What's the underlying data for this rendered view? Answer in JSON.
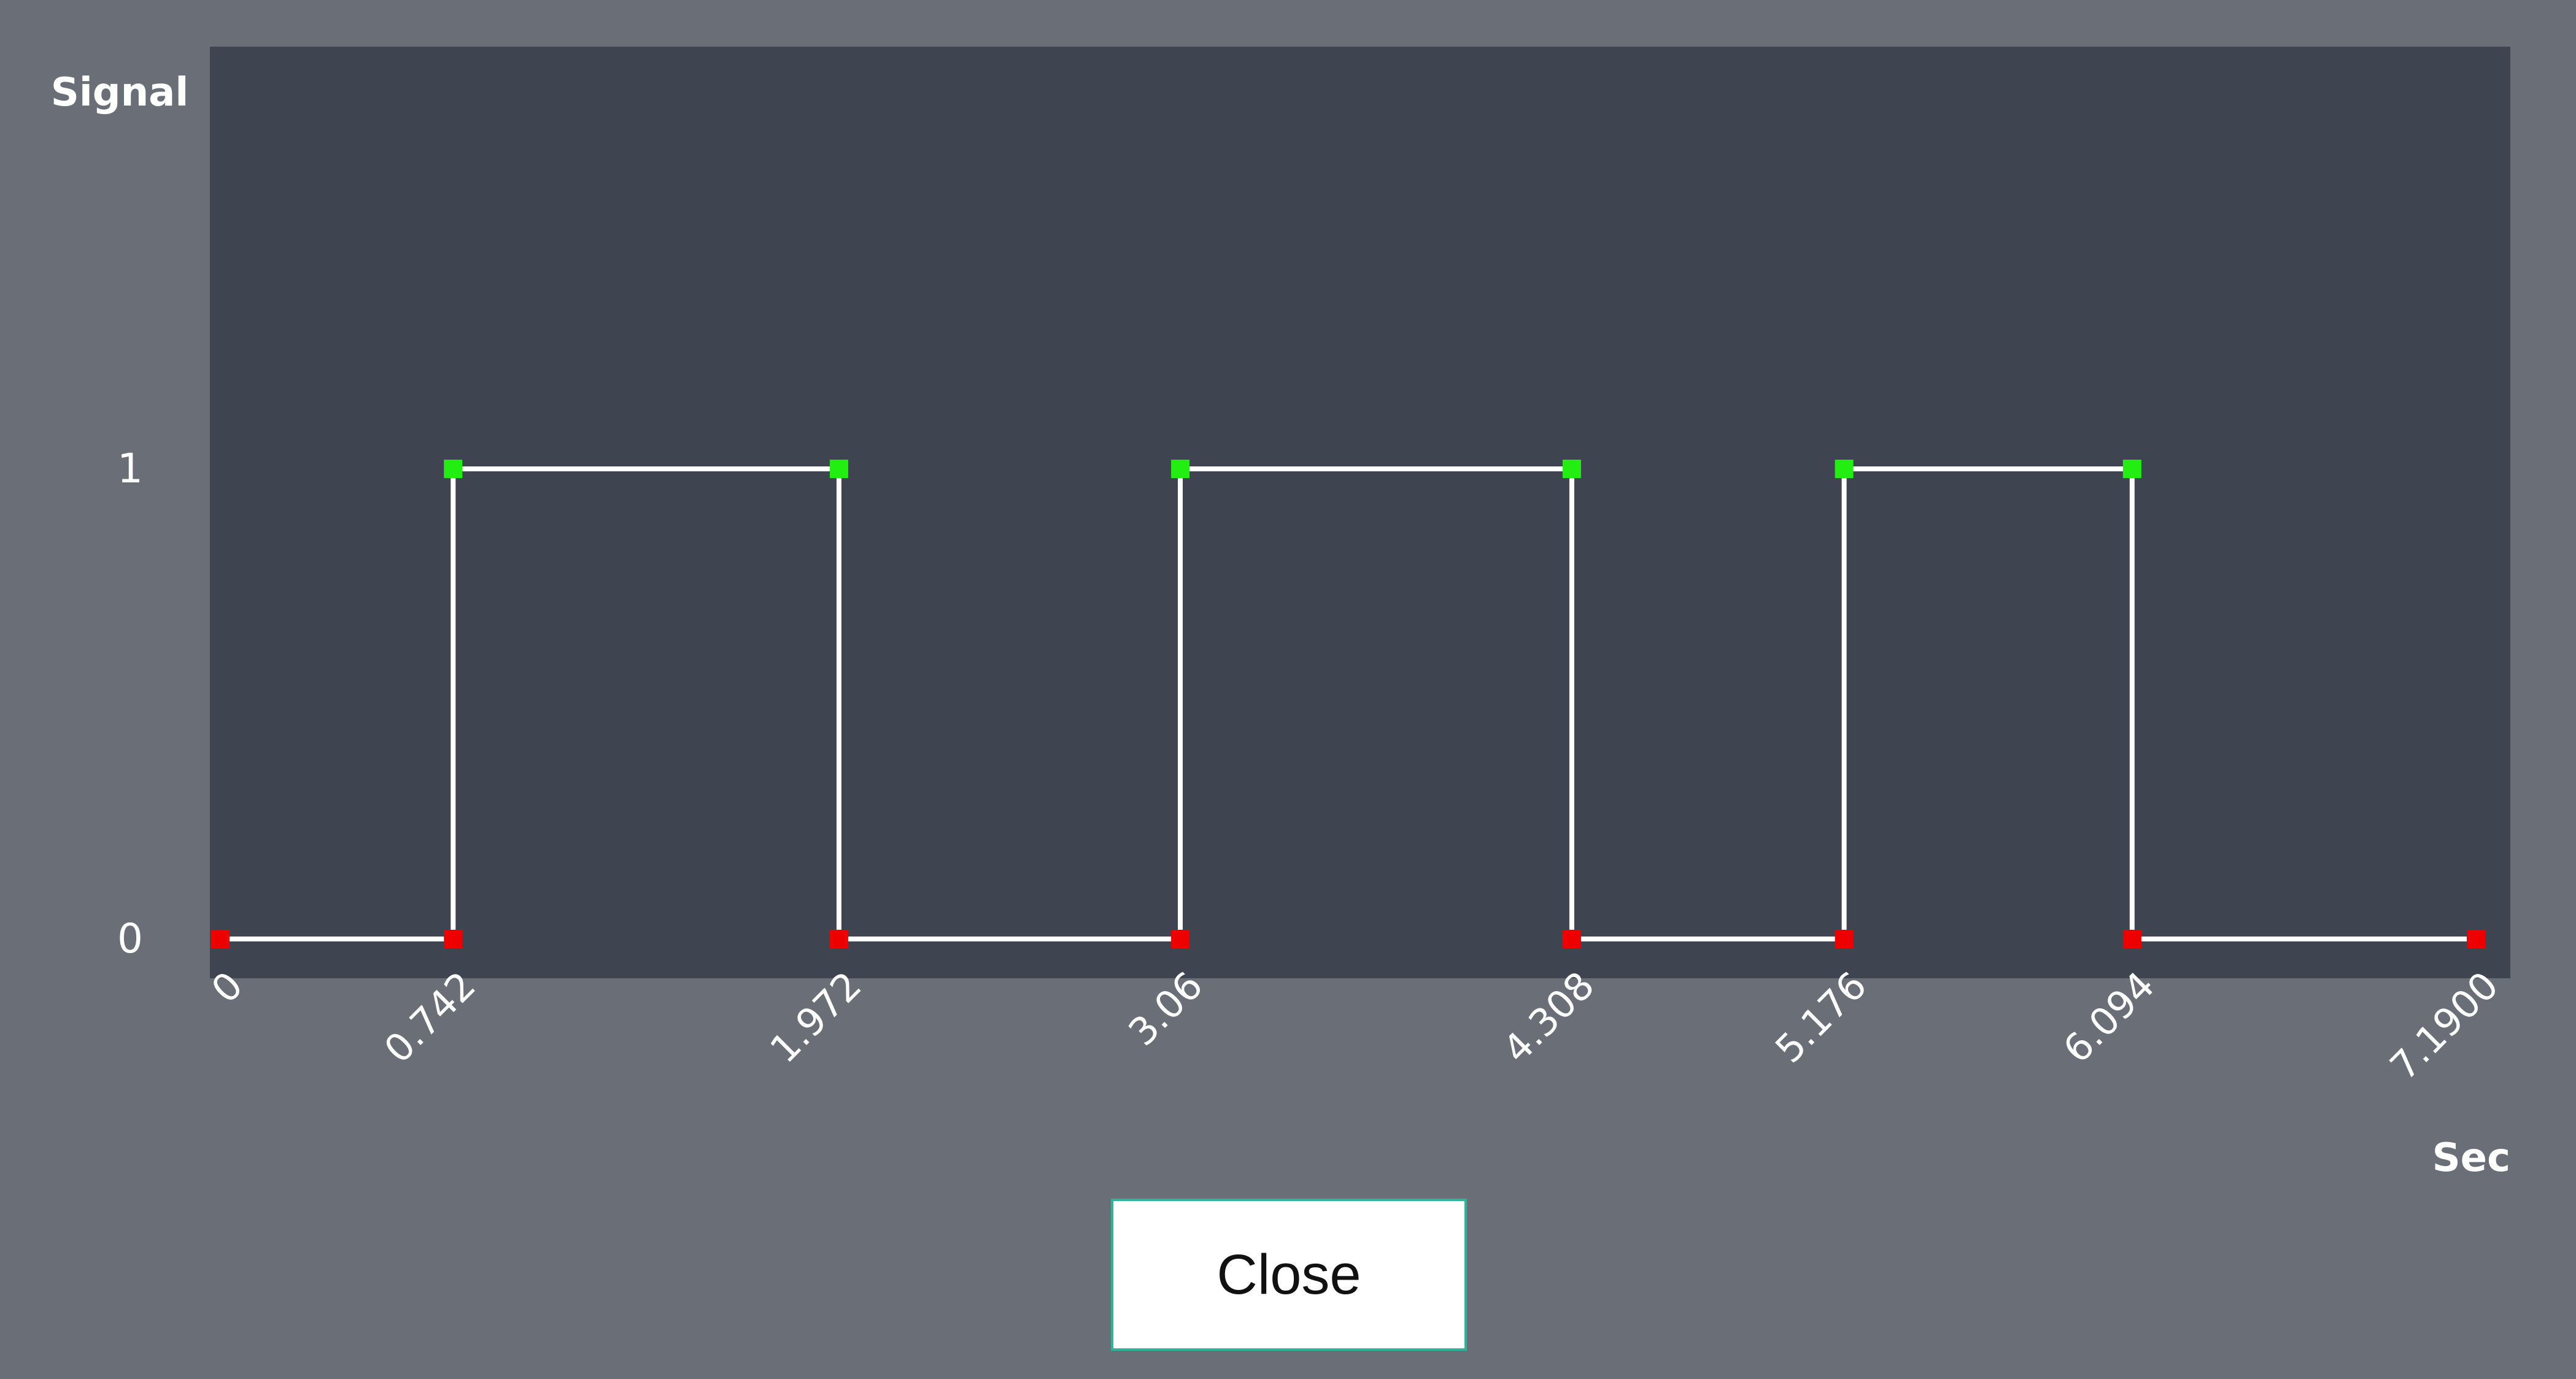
{
  "colors": {
    "background": "#6a6e77",
    "plot_background": "#3e4450",
    "line": "#ffffff",
    "high_marker": "#22ee11",
    "low_marker": "#ee0000",
    "button_border": "#2fb39a"
  },
  "close_button": {
    "label": "Close"
  },
  "chart_data": {
    "type": "line",
    "step": true,
    "ylabel": "Signal",
    "xlabel": "Sec",
    "y_ticks": [
      "0",
      "1"
    ],
    "x_tick_labels": [
      "0",
      "0.742",
      "1.972",
      "3.06",
      "4.308",
      "5.176",
      "6.094",
      "7.1900"
    ],
    "ylim": [
      0,
      2
    ],
    "xlim": [
      0,
      7.19
    ],
    "grid": false,
    "series": [
      {
        "points": [
          {
            "x": 0,
            "y": 0
          },
          {
            "x": 0.742,
            "y": 0
          },
          {
            "x": 0.742,
            "y": 1
          },
          {
            "x": 1.972,
            "y": 1
          },
          {
            "x": 1.972,
            "y": 0
          },
          {
            "x": 3.06,
            "y": 0
          },
          {
            "x": 3.06,
            "y": 1
          },
          {
            "x": 4.308,
            "y": 1
          },
          {
            "x": 4.308,
            "y": 0
          },
          {
            "x": 5.176,
            "y": 0
          },
          {
            "x": 5.176,
            "y": 1
          },
          {
            "x": 6.094,
            "y": 1
          },
          {
            "x": 6.094,
            "y": 0
          },
          {
            "x": 7.19,
            "y": 0
          }
        ]
      }
    ]
  }
}
